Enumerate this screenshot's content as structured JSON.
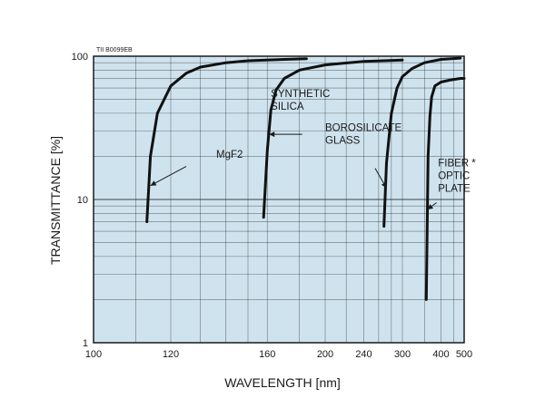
{
  "chart_data": {
    "type": "line",
    "code": "TII B0099EB",
    "xlabel": "WAVELENGTH [nm]",
    "ylabel": "TRANSMITTANCE [%]",
    "x_scale": "reciprocal",
    "y_scale": "log",
    "xlim": [
      100,
      500
    ],
    "ylim": [
      1,
      100
    ],
    "x_ticks": [
      100,
      120,
      160,
      200,
      240,
      300,
      400,
      500
    ],
    "y_ticks": [
      1,
      10,
      100
    ],
    "grid": true,
    "colors": {
      "background": "#cfe3ee",
      "grid": "#1a1a1a",
      "line": "#111111"
    },
    "series": [
      {
        "name": "MgF2",
        "points": [
          [
            113,
            7
          ],
          [
            114,
            20
          ],
          [
            116,
            40
          ],
          [
            120,
            62
          ],
          [
            125,
            76
          ],
          [
            130,
            84
          ],
          [
            140,
            90
          ],
          [
            150,
            93
          ],
          [
            170,
            95
          ],
          [
            185,
            96
          ]
        ]
      },
      {
        "name": "SYNTHETIC SILICA",
        "points": [
          [
            158,
            7.5
          ],
          [
            160,
            22
          ],
          [
            162,
            42
          ],
          [
            165,
            58
          ],
          [
            170,
            70
          ],
          [
            180,
            80
          ],
          [
            200,
            87
          ],
          [
            240,
            92
          ],
          [
            300,
            94
          ]
        ]
      },
      {
        "name": "BOROSILICATE GLASS",
        "points": [
          [
            268,
            6.5
          ],
          [
            272,
            18
          ],
          [
            280,
            40
          ],
          [
            290,
            60
          ],
          [
            300,
            72
          ],
          [
            320,
            82
          ],
          [
            350,
            90
          ],
          [
            400,
            95
          ],
          [
            480,
            97
          ]
        ]
      },
      {
        "name": "FIBER OPTIC PLATE",
        "points": [
          [
            355,
            2
          ],
          [
            358,
            8
          ],
          [
            360,
            20
          ],
          [
            365,
            38
          ],
          [
            370,
            52
          ],
          [
            380,
            62
          ],
          [
            400,
            66
          ],
          [
            430,
            68
          ],
          [
            480,
            70
          ],
          [
            500,
            70
          ]
        ]
      }
    ],
    "annotations": [
      {
        "label": "MgF2",
        "text_x": 136,
        "text_y": 19.5,
        "lx": 125,
        "ly": 17,
        "ax": 114,
        "ay": 12.5
      },
      {
        "label": "SYNTHETIC\nSILICA",
        "text_x": 162,
        "text_y": 52,
        "lx": 182,
        "ly": 28.5,
        "ax": 161,
        "ay": 28.5
      },
      {
        "label": "BOROSILICATE\nGLASS",
        "text_x": 200,
        "text_y": 30,
        "lx": 255,
        "ly": 16.5,
        "ax": 272,
        "ay": 12
      },
      {
        "label": "FIBER *\nOPTIC\nPLATE",
        "text_x": 390,
        "text_y": 17,
        "lx": 385,
        "ly": 9.5,
        "ax": 358,
        "ay": 8.5
      }
    ]
  }
}
